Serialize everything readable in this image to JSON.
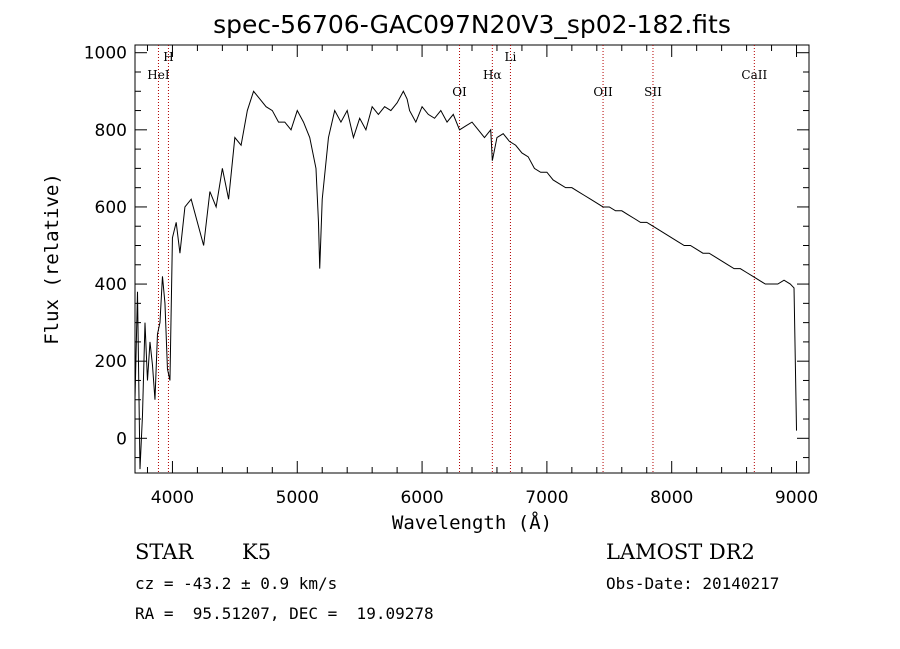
{
  "title": "spec-56706-GAC097N20V3_sp02-182.fits",
  "chart_data": {
    "type": "line",
    "xlabel": "Wavelength (Å)",
    "ylabel": "Flux (relative)",
    "xlim": [
      3700,
      9100
    ],
    "ylim": [
      -90,
      1020
    ],
    "x_ticks": [
      4000,
      5000,
      6000,
      7000,
      8000,
      9000
    ],
    "y_ticks": [
      0,
      200,
      400,
      600,
      800,
      1000
    ],
    "x_tick_labels": [
      "4000",
      "5000",
      "6000",
      "7000",
      "8000",
      "9000"
    ],
    "y_tick_labels": [
      "0",
      "200",
      "400",
      "600",
      "800",
      "1000"
    ],
    "grid": false,
    "legend": "none",
    "series": [
      {
        "x": [
          3700,
          3720,
          3740,
          3760,
          3780,
          3800,
          3820,
          3840,
          3860,
          3880,
          3900,
          3920,
          3940,
          3960,
          3980,
          4000,
          4030,
          4060,
          4100,
          4150,
          4200,
          4250,
          4300,
          4350,
          4400,
          4450,
          4500,
          4550,
          4600,
          4650,
          4700,
          4750,
          4800,
          4850,
          4900,
          4950,
          5000,
          5050,
          5100,
          5150,
          5170,
          5180,
          5200,
          5250,
          5300,
          5350,
          5400,
          5450,
          5500,
          5550,
          5600,
          5650,
          5700,
          5750,
          5800,
          5850,
          5880,
          5900,
          5950,
          6000,
          6050,
          6100,
          6150,
          6200,
          6250,
          6300,
          6350,
          6400,
          6450,
          6500,
          6550,
          6563,
          6600,
          6650,
          6700,
          6750,
          6800,
          6850,
          6900,
          6950,
          7000,
          7050,
          7100,
          7150,
          7200,
          7250,
          7300,
          7350,
          7400,
          7450,
          7500,
          7550,
          7600,
          7650,
          7700,
          7750,
          7800,
          7850,
          7900,
          7950,
          8000,
          8050,
          8100,
          8150,
          8200,
          8250,
          8300,
          8350,
          8400,
          8450,
          8500,
          8550,
          8600,
          8650,
          8700,
          8750,
          8800,
          8850,
          8900,
          8950,
          8980,
          9000
        ],
        "y": [
          100,
          380,
          -80,
          60,
          300,
          150,
          250,
          190,
          100,
          270,
          300,
          420,
          350,
          180,
          150,
          520,
          560,
          480,
          600,
          620,
          560,
          500,
          640,
          600,
          700,
          620,
          780,
          760,
          850,
          900,
          880,
          860,
          850,
          820,
          820,
          800,
          850,
          820,
          780,
          700,
          560,
          440,
          620,
          780,
          850,
          820,
          850,
          780,
          830,
          800,
          860,
          840,
          860,
          850,
          870,
          900,
          880,
          850,
          820,
          860,
          840,
          830,
          850,
          820,
          840,
          800,
          810,
          820,
          800,
          780,
          800,
          720,
          780,
          790,
          770,
          760,
          740,
          730,
          700,
          690,
          690,
          670,
          660,
          650,
          650,
          640,
          630,
          620,
          610,
          600,
          600,
          590,
          590,
          580,
          570,
          560,
          560,
          550,
          540,
          530,
          520,
          510,
          500,
          500,
          490,
          480,
          480,
          470,
          460,
          450,
          440,
          440,
          430,
          420,
          410,
          400,
          400,
          400,
          410,
          400,
          390,
          20
        ]
      }
    ],
    "annotations": [
      {
        "label": "HeI",
        "x": 3888
      },
      {
        "label": "H",
        "x": 3968
      },
      {
        "label": "OI",
        "x": 6300
      },
      {
        "label": "Hα",
        "x": 6563
      },
      {
        "label": "Li",
        "x": 6708
      },
      {
        "label": "OII",
        "x": 7450
      },
      {
        "label": "SII",
        "x": 7850
      },
      {
        "label": "CaII",
        "x": 8662
      }
    ]
  },
  "info": {
    "class_label": "STAR",
    "subclass_label": "K5",
    "survey": "LAMOST DR2",
    "cz": "cz = -43.2 ± 0.9 km/s",
    "obs_date": "Obs-Date: 20140217",
    "coords": "RA =  95.51207, DEC =  19.09278"
  },
  "colors": {
    "line": "#000000",
    "annotation_line": "#b30000",
    "text": "#000000"
  }
}
